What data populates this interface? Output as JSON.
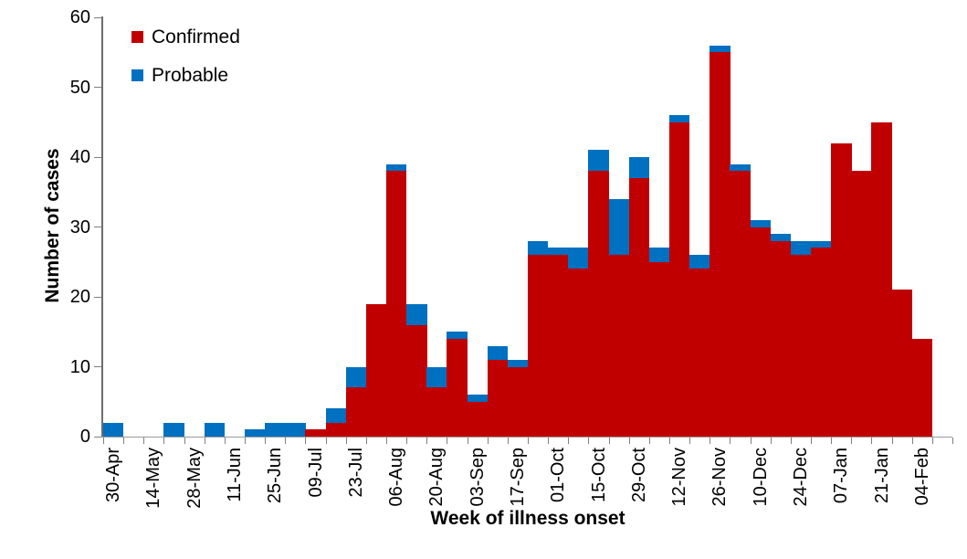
{
  "chart_data": {
    "type": "bar",
    "stacked": true,
    "title": "",
    "xlabel": "Week of illness onset",
    "ylabel": "Number of cases",
    "ylim": [
      0,
      60
    ],
    "yticks": [
      0,
      10,
      20,
      30,
      40,
      50,
      60
    ],
    "x_label_every": 2,
    "grid": false,
    "legend_position": "top-left-inside",
    "legend": [
      "Confirmed",
      "Probable"
    ],
    "axis_color": "#7f7f7f",
    "text_color": "#000000",
    "categories": [
      "30-Apr",
      "07-May",
      "14-May",
      "21-May",
      "28-May",
      "04-Jun",
      "11-Jun",
      "18-Jun",
      "25-Jun",
      "02-Jul",
      "09-Jul",
      "16-Jul",
      "23-Jul",
      "30-Jul",
      "06-Aug",
      "13-Aug",
      "20-Aug",
      "27-Aug",
      "03-Sep",
      "10-Sep",
      "17-Sep",
      "24-Sep",
      "01-Oct",
      "08-Oct",
      "15-Oct",
      "22-Oct",
      "29-Oct",
      "05-Nov",
      "12-Nov",
      "19-Nov",
      "26-Nov",
      "03-Dec",
      "10-Dec",
      "17-Dec",
      "24-Dec",
      "31-Dec",
      "07-Jan",
      "14-Jan",
      "21-Jan",
      "28-Jan",
      "04-Feb"
    ],
    "visible_tick_labels": [
      "30-Apr",
      "14-May",
      "28-May",
      "11-Jun",
      "25-Jun",
      "09-Jul",
      "23-Jul",
      "06-Aug",
      "20-Aug",
      "03-Sep",
      "17-Sep",
      "01-Oct",
      "15-Oct",
      "29-Oct",
      "12-Nov",
      "26-Nov",
      "10-Dec",
      "24-Dec",
      "07-Jan",
      "21-Jan",
      "04-Feb"
    ],
    "series": [
      {
        "name": "Confirmed",
        "color": "#C00000",
        "values": [
          0,
          0,
          0,
          0,
          0,
          0,
          0,
          0,
          0,
          0,
          1,
          2,
          7,
          19,
          38,
          16,
          7,
          14,
          5,
          11,
          10,
          26,
          26,
          24,
          38,
          26,
          37,
          25,
          45,
          24,
          55,
          38,
          30,
          28,
          26,
          27,
          42,
          38,
          45,
          21,
          14
        ]
      },
      {
        "name": "Probable",
        "color": "#0070C0",
        "values": [
          2,
          0,
          0,
          2,
          0,
          2,
          0,
          1,
          2,
          2,
          0,
          2,
          3,
          0,
          1,
          3,
          3,
          1,
          1,
          2,
          1,
          2,
          1,
          3,
          3,
          8,
          3,
          2,
          1,
          2,
          1,
          1,
          1,
          1,
          2,
          1,
          0,
          0,
          0,
          0,
          0
        ]
      }
    ]
  }
}
